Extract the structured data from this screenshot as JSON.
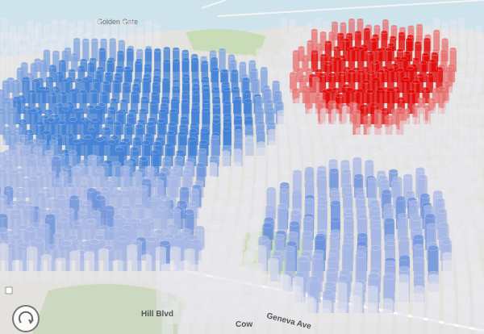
{
  "map": {
    "labels": [
      "Golden Gate",
      "Hill Blvd",
      "Geneva Ave",
      "Cow"
    ]
  }
}
